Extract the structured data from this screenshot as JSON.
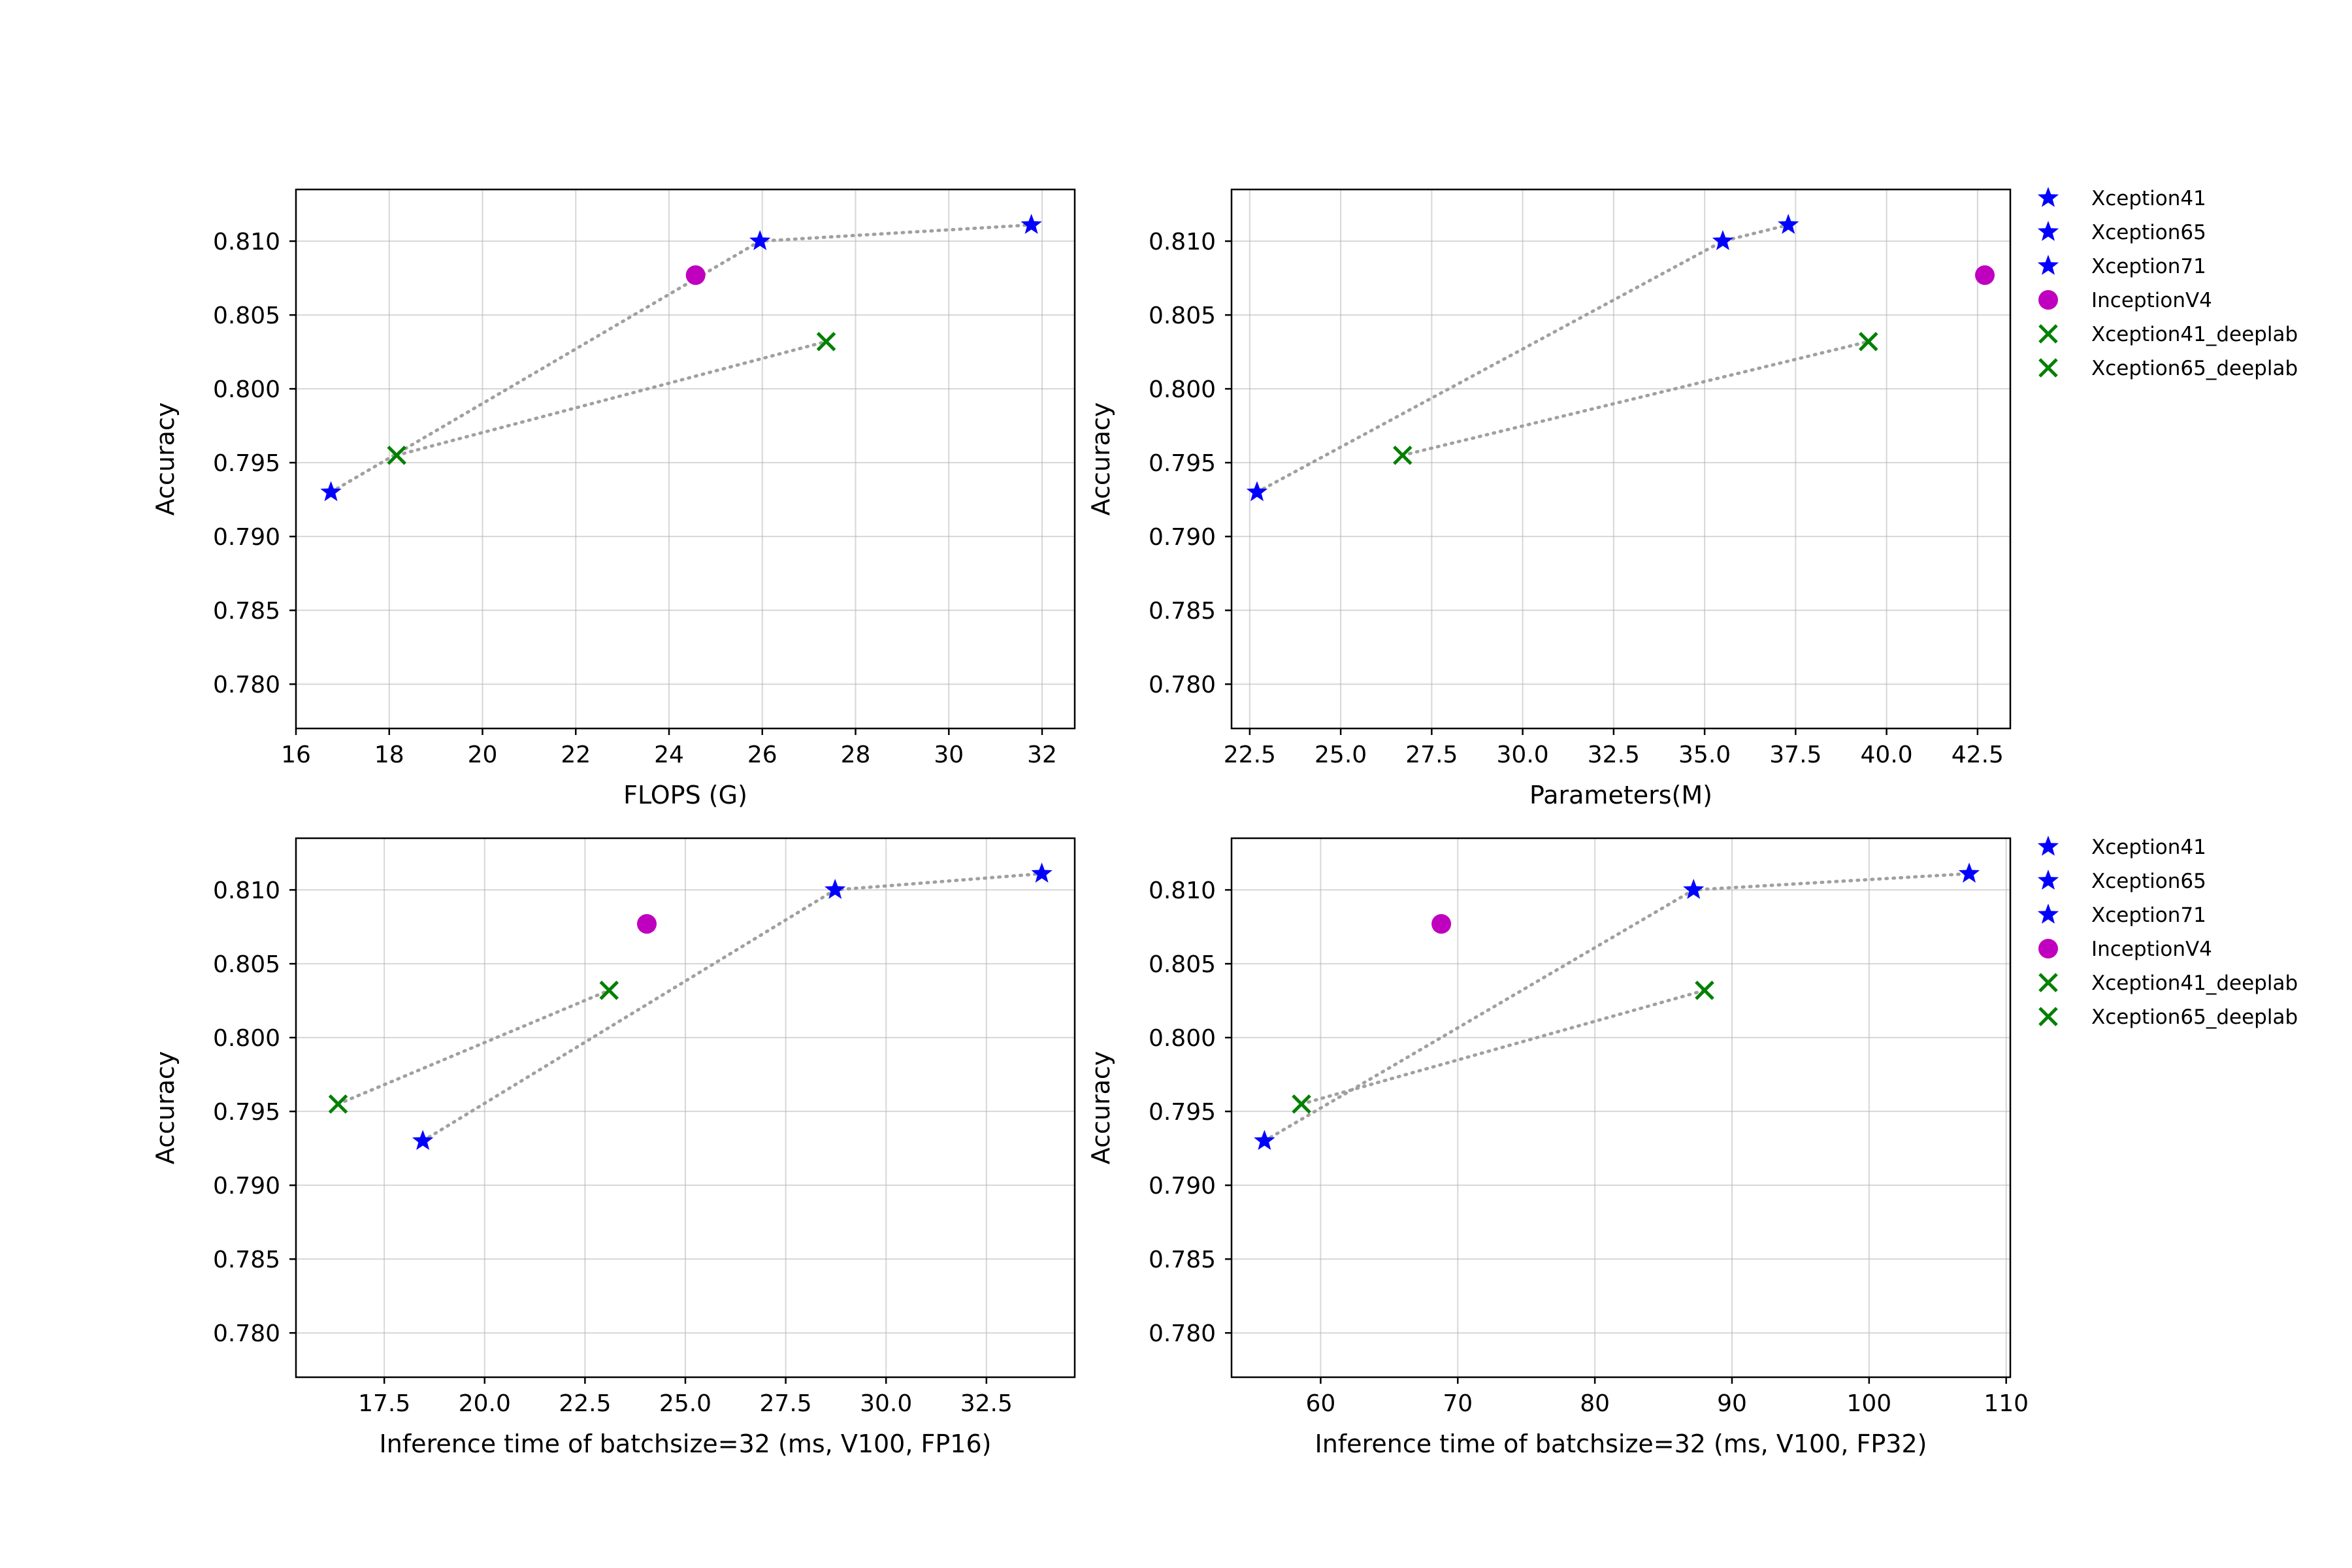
{
  "chart_data": [
    {
      "type": "scatter",
      "xlabel": "FLOPS (G)",
      "ylabel": "Accuracy",
      "xlim": [
        16,
        32.7
      ],
      "ylim": [
        0.777,
        0.8135
      ],
      "xticks": [
        "16",
        "18",
        "20",
        "22",
        "24",
        "26",
        "28",
        "30",
        "32"
      ],
      "yticks": [
        "0.780",
        "0.785",
        "0.790",
        "0.795",
        "0.800",
        "0.805",
        "0.810"
      ],
      "grid": true,
      "points": [
        {
          "label": "Xception41",
          "x": 16.75,
          "y": 0.793
        },
        {
          "label": "Xception65",
          "x": 25.95,
          "y": 0.81
        },
        {
          "label": "Xception71",
          "x": 31.77,
          "y": 0.8111
        },
        {
          "label": "InceptionV4",
          "x": 24.57,
          "y": 0.8077
        },
        {
          "label": "Xception41_deeplab",
          "x": 18.16,
          "y": 0.7955
        },
        {
          "label": "Xception65_deeplab",
          "x": 27.37,
          "y": 0.8032
        }
      ],
      "lines": [
        [
          "Xception41",
          "Xception65",
          "Xception71"
        ],
        [
          "Xception41_deeplab",
          "Xception65_deeplab"
        ]
      ],
      "legend": false
    },
    {
      "type": "scatter",
      "xlabel": "Parameters(M)",
      "ylabel": "Accuracy",
      "xlim": [
        22.0,
        43.4
      ],
      "ylim": [
        0.777,
        0.8135
      ],
      "xticks": [
        "22.5",
        "25.0",
        "27.5",
        "30.0",
        "32.5",
        "35.0",
        "37.5",
        "40.0",
        "42.5"
      ],
      "yticks": [
        "0.780",
        "0.785",
        "0.790",
        "0.795",
        "0.800",
        "0.805",
        "0.810"
      ],
      "grid": true,
      "points": [
        {
          "label": "Xception41",
          "x": 22.7,
          "y": 0.793
        },
        {
          "label": "Xception65",
          "x": 35.5,
          "y": 0.81
        },
        {
          "label": "Xception71",
          "x": 37.3,
          "y": 0.8111
        },
        {
          "label": "InceptionV4",
          "x": 42.7,
          "y": 0.8077
        },
        {
          "label": "Xception41_deeplab",
          "x": 26.7,
          "y": 0.7955
        },
        {
          "label": "Xception65_deeplab",
          "x": 39.5,
          "y": 0.8032
        }
      ],
      "lines": [
        [
          "Xception41",
          "Xception65",
          "Xception71"
        ],
        [
          "Xception41_deeplab",
          "Xception65_deeplab"
        ]
      ],
      "legend": true,
      "legend_position": "outside-right"
    },
    {
      "type": "scatter",
      "xlabel": "Inference time of batchsize=32 (ms, V100, FP16)",
      "ylabel": "Accuracy",
      "xlim": [
        15.3,
        34.7
      ],
      "ylim": [
        0.777,
        0.8135
      ],
      "xticks": [
        "17.5",
        "20.0",
        "22.5",
        "25.0",
        "27.5",
        "30.0",
        "32.5"
      ],
      "yticks": [
        "0.780",
        "0.785",
        "0.790",
        "0.795",
        "0.800",
        "0.805",
        "0.810"
      ],
      "grid": true,
      "points": [
        {
          "label": "Xception41",
          "x": 18.46,
          "y": 0.793
        },
        {
          "label": "Xception65",
          "x": 28.73,
          "y": 0.81
        },
        {
          "label": "Xception71",
          "x": 33.88,
          "y": 0.8111
        },
        {
          "label": "InceptionV4",
          "x": 24.04,
          "y": 0.8077
        },
        {
          "label": "Xception41_deeplab",
          "x": 16.35,
          "y": 0.7955
        },
        {
          "label": "Xception65_deeplab",
          "x": 23.1,
          "y": 0.8032
        }
      ],
      "lines": [
        [
          "Xception41",
          "Xception65",
          "Xception71"
        ],
        [
          "Xception41_deeplab",
          "Xception65_deeplab"
        ]
      ],
      "legend": false
    },
    {
      "type": "scatter",
      "xlabel": "Inference time of batchsize=32 (ms, V100, FP32)",
      "ylabel": "Accuracy",
      "xlim": [
        53.5,
        110.3
      ],
      "ylim": [
        0.777,
        0.8135
      ],
      "xticks": [
        "60",
        "70",
        "80",
        "90",
        "100",
        "110"
      ],
      "yticks": [
        "0.780",
        "0.785",
        "0.790",
        "0.795",
        "0.800",
        "0.805",
        "0.810"
      ],
      "grid": true,
      "points": [
        {
          "label": "Xception41",
          "x": 55.9,
          "y": 0.793
        },
        {
          "label": "Xception65",
          "x": 87.2,
          "y": 0.81
        },
        {
          "label": "Xception71",
          "x": 107.3,
          "y": 0.8111
        },
        {
          "label": "InceptionV4",
          "x": 68.8,
          "y": 0.8077
        },
        {
          "label": "Xception41_deeplab",
          "x": 58.6,
          "y": 0.7955
        },
        {
          "label": "Xception65_deeplab",
          "x": 88.0,
          "y": 0.8032
        }
      ],
      "lines": [
        [
          "Xception41",
          "Xception65",
          "Xception71"
        ],
        [
          "Xception41_deeplab",
          "Xception65_deeplab"
        ]
      ],
      "legend": true,
      "legend_position": "outside-right"
    }
  ],
  "legend_items": [
    {
      "label": "Xception41",
      "marker": "star",
      "color": "#0000ff"
    },
    {
      "label": "Xception65",
      "marker": "star",
      "color": "#0000ff"
    },
    {
      "label": "Xception71",
      "marker": "star",
      "color": "#0000ff"
    },
    {
      "label": "InceptionV4",
      "marker": "circle",
      "color": "#bf00bf"
    },
    {
      "label": "Xception41_deeplab",
      "marker": "x",
      "color": "#008000"
    },
    {
      "label": "Xception65_deeplab",
      "marker": "x",
      "color": "#008000"
    }
  ],
  "colors": {
    "star": "#0000ff",
    "circle": "#bf00bf",
    "x": "#008000",
    "connector": "#a0a0a0"
  }
}
